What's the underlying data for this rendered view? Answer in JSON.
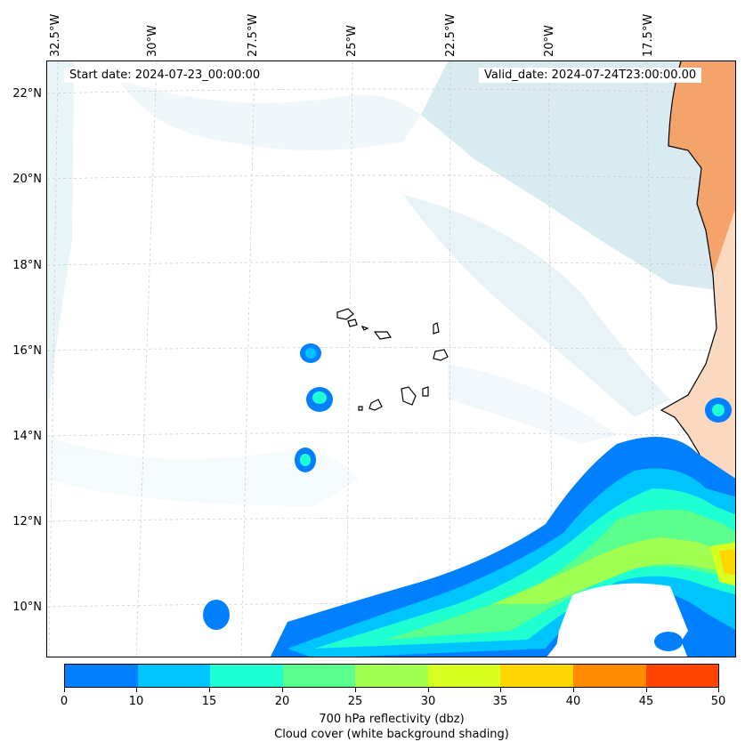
{
  "map": {
    "start_date": "Start date: 2024-07-23_00:00:00",
    "valid_date": "Valid_date: 2024-07-24T23:00:00.00",
    "lon_labels": [
      "32.5°W",
      "30°W",
      "27.5°W",
      "25°W",
      "22.5°W",
      "20°W",
      "17.5°W"
    ],
    "lat_labels": [
      "22°N",
      "20°N",
      "18°N",
      "16°N",
      "14°N",
      "12°N",
      "10°N"
    ],
    "land_color": "#f4a36a",
    "cloud_color": "#b9dbe6",
    "grid": true
  },
  "colorbar": {
    "ticks": [
      "0",
      "10",
      "15",
      "20",
      "25",
      "30",
      "35",
      "40",
      "45",
      "50"
    ],
    "colors": [
      "#0080ff",
      "#00c4ff",
      "#1effd2",
      "#5aff8c",
      "#a0ff50",
      "#d8ff20",
      "#ffd700",
      "#ff8c00",
      "#ff4500"
    ],
    "label": "700 hPa reflectivity (dbz)",
    "sublabel": "Cloud cover (white background shading)"
  }
}
